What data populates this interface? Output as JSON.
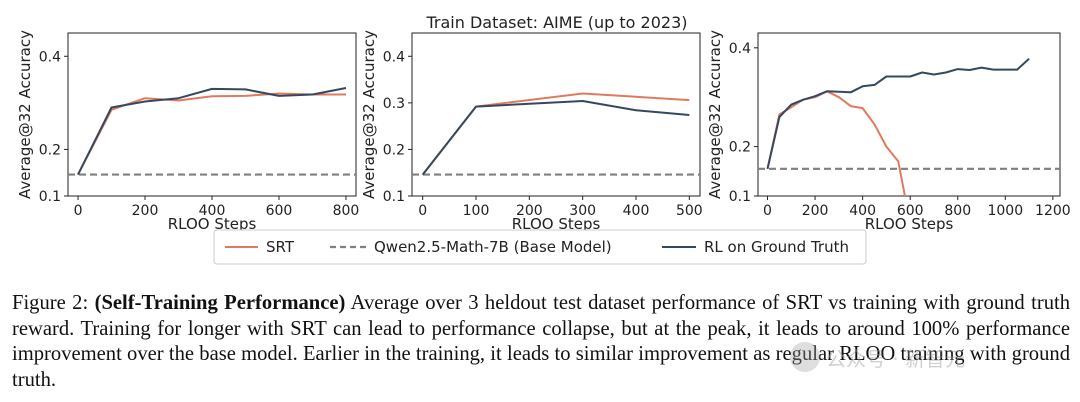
{
  "figure": {
    "suptitle": "Train Dataset: AIME (up to 2023)",
    "legend": {
      "srt": "SRT",
      "base": "Qwen2.5-Math-7B (Base Model)",
      "rl": "RL on Ground Truth"
    },
    "colors": {
      "srt": "#e07a5f",
      "rl": "#34495e",
      "base": "#7f7f7f"
    }
  },
  "chart_data": [
    {
      "type": "line",
      "xlabel": "RLOO Steps",
      "ylabel": "Average@32 Accuracy",
      "xlim": [
        -30,
        830
      ],
      "ylim": [
        0.1,
        0.45
      ],
      "xticks": [
        0,
        200,
        400,
        600,
        800
      ],
      "yticks": [
        0.1,
        0.2,
        0.4
      ],
      "baseline": 0.146,
      "series": [
        {
          "name": "SRT",
          "x": [
            0,
            100,
            200,
            300,
            400,
            500,
            600,
            700,
            800
          ],
          "y": [
            0.146,
            0.285,
            0.31,
            0.305,
            0.314,
            0.315,
            0.32,
            0.318,
            0.318
          ]
        },
        {
          "name": "RL on Ground Truth",
          "x": [
            0,
            100,
            200,
            300,
            400,
            500,
            600,
            700,
            800
          ],
          "y": [
            0.146,
            0.29,
            0.303,
            0.31,
            0.33,
            0.329,
            0.315,
            0.318,
            0.332
          ]
        }
      ]
    },
    {
      "type": "line",
      "xlabel": "RLOO Steps",
      "ylabel": "Average@32 Accuracy",
      "xlim": [
        -20,
        520
      ],
      "ylim": [
        0.1,
        0.45
      ],
      "xticks": [
        0,
        100,
        200,
        300,
        400,
        500
      ],
      "yticks": [
        0.1,
        0.2,
        0.3,
        0.4
      ],
      "baseline": 0.146,
      "series": [
        {
          "name": "SRT",
          "x": [
            0,
            100,
            300,
            500
          ],
          "y": [
            0.146,
            0.292,
            0.32,
            0.306
          ]
        },
        {
          "name": "RL on Ground Truth",
          "x": [
            0,
            100,
            300,
            400,
            500
          ],
          "y": [
            0.146,
            0.292,
            0.304,
            0.284,
            0.274
          ]
        }
      ]
    },
    {
      "type": "line",
      "xlabel": "RLOO Steps",
      "ylabel": "Average@32 Accuracy",
      "xlim": [
        -40,
        1230
      ],
      "ylim": [
        0.1,
        0.43
      ],
      "xticks": [
        0,
        200,
        400,
        600,
        800,
        1000,
        1200
      ],
      "yticks": [
        0.1,
        0.2,
        0.4
      ],
      "baseline": 0.155,
      "series": [
        {
          "name": "SRT",
          "x": [
            0,
            50,
            100,
            150,
            200,
            250,
            300,
            350,
            400,
            450,
            500,
            550,
            580
          ],
          "y": [
            0.155,
            0.265,
            0.28,
            0.295,
            0.3,
            0.312,
            0.3,
            0.282,
            0.278,
            0.245,
            0.2,
            0.17,
            0.095
          ]
        },
        {
          "name": "RL on Ground Truth",
          "x": [
            0,
            50,
            100,
            150,
            200,
            250,
            300,
            350,
            400,
            450,
            500,
            550,
            600,
            650,
            700,
            750,
            800,
            850,
            900,
            950,
            1000,
            1050,
            1100
          ],
          "y": [
            0.155,
            0.26,
            0.285,
            0.295,
            0.302,
            0.312,
            0.311,
            0.31,
            0.322,
            0.325,
            0.342,
            0.342,
            0.342,
            0.35,
            0.346,
            0.35,
            0.357,
            0.355,
            0.36,
            0.356,
            0.356,
            0.356,
            0.378
          ]
        }
      ]
    }
  ],
  "caption": {
    "label": "Figure 2:",
    "bold": "(Self-Training Performance)",
    "text": "Average over 3 heldout test dataset performance of SRT vs training with ground truth reward. Training for longer with SRT can lead to performance collapse, but at the peak, it leads to around 100% performance improvement over the base model. Earlier in the training, it leads to similar improvement as regular RLOO training with ground truth."
  },
  "watermark": "公众号 · 新智元"
}
